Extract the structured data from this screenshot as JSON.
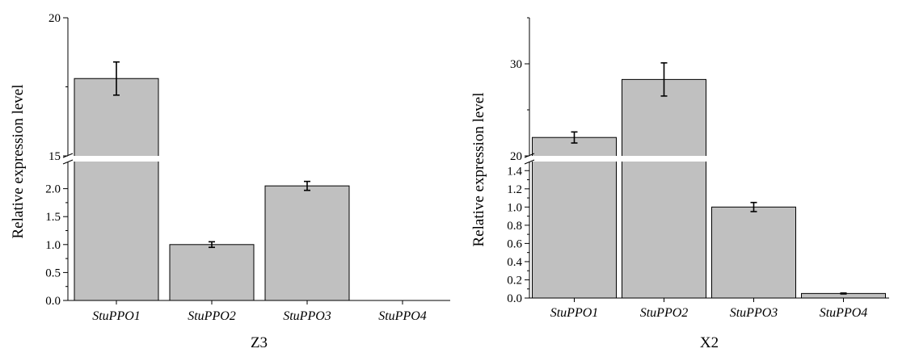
{
  "chart_data": [
    {
      "type": "bar",
      "xlabel": "Z3",
      "ylabel": "Relative expression level",
      "categories": [
        "StuPPO1",
        "StuPPO2",
        "StuPPO3",
        "StuPPO4"
      ],
      "values": [
        17.8,
        1.0,
        2.05,
        0.0
      ],
      "errors": [
        0.6,
        0.05,
        0.08,
        0.0
      ],
      "axis_break": true,
      "lower_segment": {
        "ylim": [
          0,
          2.5
        ],
        "ticks": [
          "0.0",
          "0.5",
          "1.0",
          "1.5",
          "2.0"
        ]
      },
      "upper_segment": {
        "ylim": [
          15,
          20
        ],
        "ticks": [
          "15",
          "20"
        ]
      },
      "bar_color": "#c0c0c0",
      "grid": false
    },
    {
      "type": "bar",
      "xlabel": "X2",
      "ylabel": "Relative expression level",
      "categories": [
        "StuPPO1",
        "StuPPO2",
        "StuPPO3",
        "StuPPO4"
      ],
      "values": [
        22.0,
        28.3,
        1.0,
        0.05
      ],
      "errors": [
        0.6,
        1.8,
        0.05,
        0.005
      ],
      "axis_break": true,
      "lower_segment": {
        "ylim": [
          0,
          1.5
        ],
        "ticks": [
          "0.0",
          "0.2",
          "0.4",
          "0.6",
          "0.8",
          "1.0",
          "1.2",
          "1.4"
        ]
      },
      "upper_segment": {
        "ylim": [
          20,
          35
        ],
        "ticks": [
          "20",
          "30"
        ]
      },
      "bar_color": "#c0c0c0",
      "grid": false
    }
  ]
}
